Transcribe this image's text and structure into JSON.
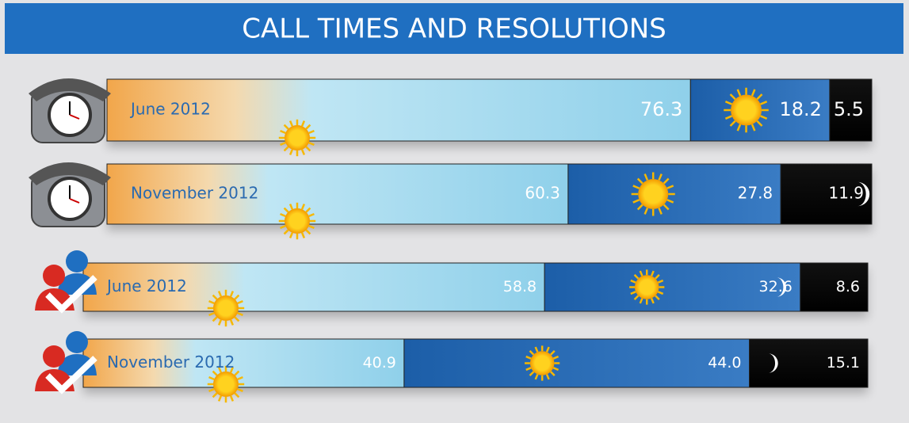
{
  "chart_data": {
    "type": "bar",
    "orientation": "horizontal",
    "stacked": true,
    "title": "CALL TIMES AND RESOLUTIONS",
    "categories": [
      "June 2012",
      "November 2012",
      "June 2012",
      "November 2012"
    ],
    "xlim": [
      0,
      100
    ],
    "series": [
      {
        "color": "#a8dcef",
        "values": [
          76.3,
          60.3,
          58.8,
          40.9
        ],
        "value_labels": [
          "76.3",
          "60.3",
          "58.8",
          "40.9"
        ]
      },
      {
        "color": "#2f6fb6",
        "values": [
          18.2,
          27.8,
          32.6,
          44.0
        ],
        "value_labels": [
          "18.2",
          "27.8",
          "32.6",
          "44.0"
        ]
      },
      {
        "color": "#000000",
        "values": [
          5.5,
          11.9,
          8.6,
          15.1
        ],
        "value_labels": [
          "5.5",
          "11.9",
          "8.6",
          "15.1"
        ]
      }
    ]
  }
}
